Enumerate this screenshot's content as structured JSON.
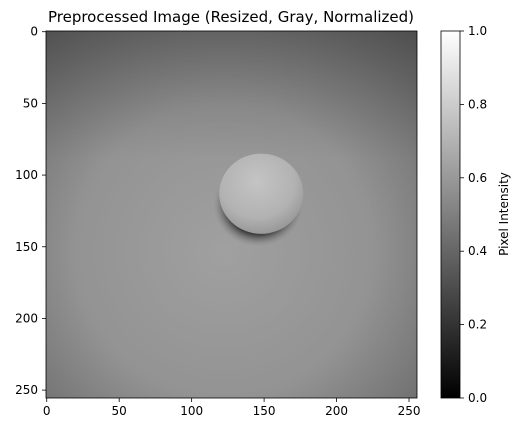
{
  "chart_data": {
    "type": "heatmap",
    "title": "Preprocessed Image (Resized, Gray, Normalized)",
    "xlabel": "",
    "ylabel": "",
    "xlim": [
      0,
      256
    ],
    "ylim": [
      256,
      0
    ],
    "x_ticks": [
      0,
      50,
      100,
      150,
      200,
      250
    ],
    "y_ticks": [
      0,
      50,
      100,
      150,
      200,
      250
    ],
    "image_description_values": {
      "background_intensity_range": [
        0.35,
        0.6
      ],
      "object": "egg",
      "object_center": [
        148,
        113
      ],
      "object_radius": [
        29,
        28
      ],
      "object_intensity": 0.7,
      "shadow_intensity": 0.18
    },
    "colorbar": {
      "label": "Pixel Intensity",
      "colormap": "gray",
      "range": [
        0.0,
        1.0
      ],
      "ticks": [
        0.0,
        0.2,
        0.4,
        0.6,
        0.8,
        1.0
      ],
      "tick_labels": [
        "0.0",
        "0.2",
        "0.4",
        "0.6",
        "0.8",
        "1.0"
      ]
    },
    "grid": false
  }
}
